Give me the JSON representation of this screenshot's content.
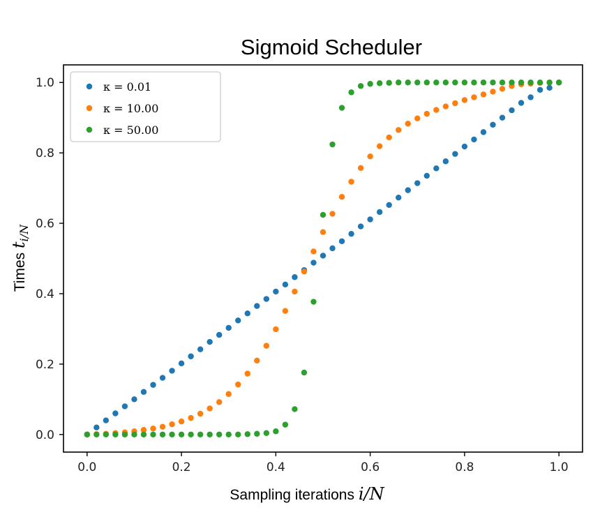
{
  "chart_data": {
    "type": "scatter",
    "title": "Sigmoid Scheduler",
    "xlabel": {
      "text": "Sampling iterations ",
      "math": "i/N"
    },
    "ylabel": {
      "text": "Times ",
      "math": "t",
      "sub": "i/N"
    },
    "xlim": [
      -0.05,
      1.05
    ],
    "ylim": [
      -0.05,
      1.05
    ],
    "xticks": [
      0.0,
      0.2,
      0.4,
      0.6,
      0.8,
      1.0
    ],
    "xtick_labels": [
      "0.0",
      "0.2",
      "0.4",
      "0.6",
      "0.8",
      "1.0"
    ],
    "yticks": [
      0.0,
      0.2,
      0.4,
      0.6,
      0.8,
      1.0
    ],
    "ytick_labels": [
      "0.0",
      "0.2",
      "0.4",
      "0.6",
      "0.8",
      "1.0"
    ],
    "grid": false,
    "legend_position": "upper-left",
    "x": [
      0.0,
      0.02,
      0.04,
      0.06,
      0.08,
      0.1,
      0.12,
      0.14,
      0.16,
      0.18,
      0.2,
      0.22,
      0.24,
      0.26,
      0.28,
      0.3,
      0.32,
      0.34,
      0.36,
      0.38,
      0.4,
      0.42,
      0.44,
      0.46,
      0.48,
      0.5,
      0.52,
      0.54,
      0.56,
      0.58,
      0.6,
      0.62,
      0.64,
      0.66,
      0.68,
      0.7,
      0.72,
      0.74,
      0.76,
      0.78,
      0.8,
      0.82,
      0.84,
      0.86,
      0.88,
      0.9,
      0.92,
      0.94,
      0.96,
      0.98,
      1.0
    ],
    "series": [
      {
        "name": "κ = 0.01",
        "color": "#1f77b4",
        "values": [
          0.0,
          0.02,
          0.04,
          0.06,
          0.08,
          0.1,
          0.121,
          0.141,
          0.161,
          0.181,
          0.202,
          0.222,
          0.242,
          0.263,
          0.283,
          0.303,
          0.324,
          0.344,
          0.365,
          0.385,
          0.406,
          0.426,
          0.447,
          0.467,
          0.488,
          0.508,
          0.529,
          0.549,
          0.57,
          0.591,
          0.611,
          0.632,
          0.652,
          0.673,
          0.694,
          0.714,
          0.735,
          0.756,
          0.776,
          0.797,
          0.818,
          0.838,
          0.859,
          0.88,
          0.9,
          0.921,
          0.942,
          0.958,
          0.979,
          0.985,
          1.0
        ]
      },
      {
        "name": "κ = 10.00",
        "color": "#ff7f0e",
        "values": [
          0.0,
          0.001,
          0.002,
          0.004,
          0.006,
          0.009,
          0.013,
          0.017,
          0.022,
          0.029,
          0.037,
          0.047,
          0.059,
          0.074,
          0.092,
          0.115,
          0.142,
          0.173,
          0.21,
          0.252,
          0.299,
          0.351,
          0.406,
          0.463,
          0.52,
          0.575,
          0.627,
          0.675,
          0.718,
          0.757,
          0.79,
          0.819,
          0.844,
          0.865,
          0.883,
          0.898,
          0.911,
          0.922,
          0.932,
          0.941,
          0.95,
          0.958,
          0.966,
          0.974,
          0.982,
          0.99,
          0.995,
          0.997,
          0.999,
          1.0,
          1.0
        ]
      },
      {
        "name": "κ = 50.00",
        "color": "#2ca02c",
        "values": [
          0.0,
          0.0,
          0.0,
          0.0,
          0.0,
          0.0,
          0.0,
          0.0,
          0.0,
          0.0,
          0.0,
          0.0,
          0.0,
          0.0,
          0.0,
          0.0,
          0.0,
          0.001,
          0.002,
          0.004,
          0.009,
          0.028,
          0.072,
          0.176,
          0.377,
          0.624,
          0.824,
          0.928,
          0.972,
          0.99,
          0.996,
          0.998,
          0.999,
          1.0,
          1.0,
          1.0,
          1.0,
          1.0,
          1.0,
          1.0,
          1.0,
          1.0,
          1.0,
          1.0,
          1.0,
          1.0,
          1.0,
          1.0,
          1.0,
          1.0,
          1.0
        ]
      }
    ]
  }
}
